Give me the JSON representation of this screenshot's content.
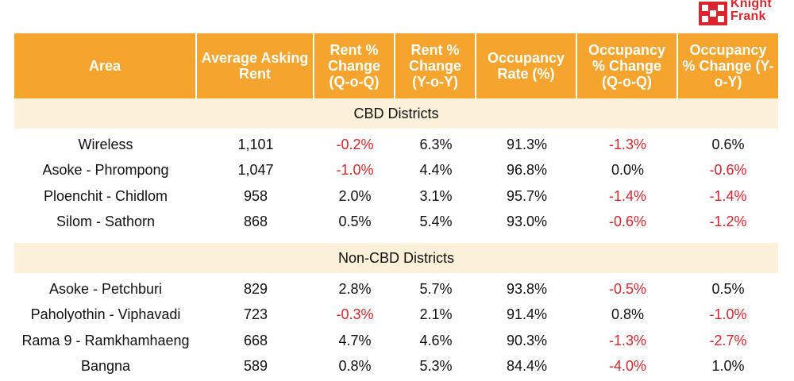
{
  "logo": {
    "line1": "Knight",
    "line2": "Frank",
    "color": "#d9252b"
  },
  "colors": {
    "header_bg": "#f5a52d",
    "section_bg": "#fdf0d8",
    "negative": "#d9252b"
  },
  "columns": [
    {
      "label": "Area"
    },
    {
      "label": "Average Asking Rent"
    },
    {
      "label": "Rent % Change (Q-o-Q)"
    },
    {
      "label": "Rent % Change (Y-o-Y)"
    },
    {
      "label": "Occupancy Rate (%)"
    },
    {
      "label": "Occupancy % Change (Q-o-Q)"
    },
    {
      "label": "Occupancy % Change (Y-o-Y)"
    }
  ],
  "sections": [
    {
      "title": "CBD Districts",
      "rows": [
        [
          "Wireless",
          "1,101",
          "-0.2%",
          "6.3%",
          "91.3%",
          "-1.3%",
          "0.6%"
        ],
        [
          "Asoke - Phrompong",
          "1,047",
          "-1.0%",
          "4.4%",
          "96.8%",
          "0.0%",
          "-0.6%"
        ],
        [
          "Ploenchit - Chidlom",
          "958",
          "2.0%",
          "3.1%",
          "95.7%",
          "-1.4%",
          "-1.4%"
        ],
        [
          "Silom - Sathorn",
          "868",
          "0.5%",
          "5.4%",
          "93.0%",
          "-0.6%",
          "-1.2%"
        ]
      ]
    },
    {
      "title": "Non-CBD Districts",
      "rows": [
        [
          "Asoke - Petchburi",
          "829",
          "2.8%",
          "5.7%",
          "93.8%",
          "-0.5%",
          "0.5%"
        ],
        [
          "Paholyothin - Viphavadi",
          "723",
          "-0.3%",
          "2.1%",
          "91.4%",
          "0.8%",
          "-1.0%"
        ],
        [
          "Rama 9 - Ramkhamhaeng",
          "668",
          "4.7%",
          "4.6%",
          "90.3%",
          "-1.3%",
          "-2.7%"
        ],
        [
          "Bangna",
          "589",
          "0.8%",
          "5.3%",
          "84.4%",
          "-4.0%",
          "1.0%"
        ]
      ]
    }
  ]
}
